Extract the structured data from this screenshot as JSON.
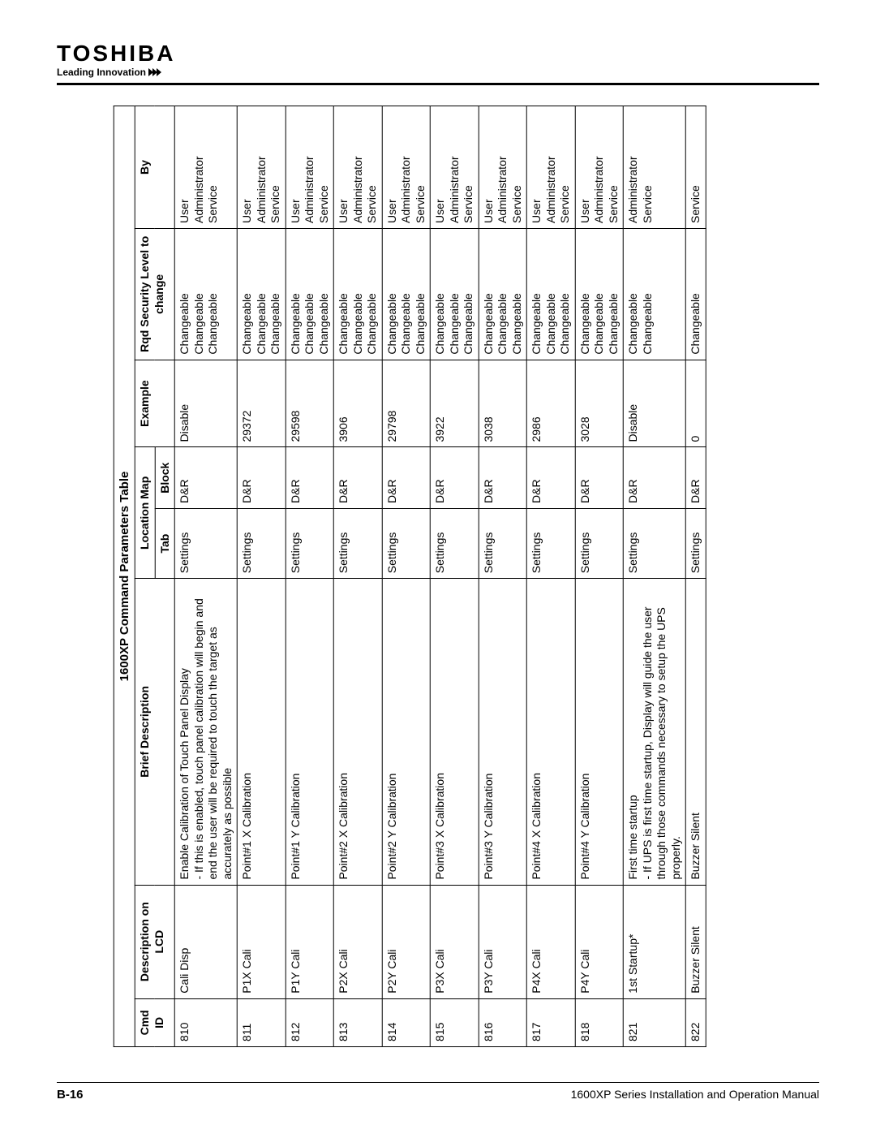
{
  "header": {
    "brand": "TOSHIBA",
    "tagline": "Leading Innovation"
  },
  "table": {
    "title": "1600XP Command Parameters Table",
    "columns": {
      "cmd": "Cmd ID",
      "desc": "Description on LCD",
      "brief": "Brief Description",
      "locmap": "Location Map",
      "tab": "Tab",
      "block": "Block",
      "example": "Example",
      "rqd": "Rqd Security Level to change",
      "by": "By"
    },
    "rows": [
      {
        "cmd": "810",
        "desc": "Cali Disp",
        "brief": "Enable Calibration of Touch Panel Display\n- If this is enabled, touch panel calibration will begin and end the user will be required to touch the target as accurately as possible",
        "tab": "Settings",
        "block": "D&R",
        "example": "Disable",
        "sec": "Changeable\nChangeable\nChangeable",
        "by": "User\nAdministrator\nService"
      },
      {
        "cmd": "811",
        "desc": "P1X Cali",
        "brief": "Point#1 X Calibration",
        "tab": "Settings",
        "block": "D&R",
        "example": "29372",
        "sec": "Changeable\nChangeable\nChangeable",
        "by": "User\nAdministrator\nService"
      },
      {
        "cmd": "812",
        "desc": "P1Y Cali",
        "brief": "Point#1 Y Calibration",
        "tab": "Settings",
        "block": "D&R",
        "example": "29598",
        "sec": "Changeable\nChangeable\nChangeable",
        "by": "User\nAdministrator\nService"
      },
      {
        "cmd": "813",
        "desc": "P2X Cali",
        "brief": "Point#2 X Calibration",
        "tab": "Settings",
        "block": "D&R",
        "example": "3906",
        "sec": "Changeable\nChangeable\nChangeable",
        "by": "User\nAdministrator\nService"
      },
      {
        "cmd": "814",
        "desc": "P2Y Cali",
        "brief": "Point#2 Y Calibration",
        "tab": "Settings",
        "block": "D&R",
        "example": "29798",
        "sec": "Changeable\nChangeable\nChangeable",
        "by": "User\nAdministrator\nService"
      },
      {
        "cmd": "815",
        "desc": "P3X Cali",
        "brief": "Point#3 X Calibration",
        "tab": "Settings",
        "block": "D&R",
        "example": "3922",
        "sec": "Changeable\nChangeable\nChangeable",
        "by": "User\nAdministrator\nService"
      },
      {
        "cmd": "816",
        "desc": "P3Y Cali",
        "brief": "Point#3 Y Calibration",
        "tab": "Settings",
        "block": "D&R",
        "example": "3038",
        "sec": "Changeable\nChangeable\nChangeable",
        "by": "User\nAdministrator\nService"
      },
      {
        "cmd": "817",
        "desc": "P4X Cali",
        "brief": "Point#4 X Calibration",
        "tab": "Settings",
        "block": "D&R",
        "example": "2986",
        "sec": "Changeable\nChangeable\nChangeable",
        "by": "User\nAdministrator\nService"
      },
      {
        "cmd": "818",
        "desc": "P4Y Cali",
        "brief": "Point#4 Y Calibration",
        "tab": "Settings",
        "block": "D&R",
        "example": "3028",
        "sec": "Changeable\nChangeable\nChangeable",
        "by": "User\nAdministrator\nService"
      },
      {
        "cmd": "821",
        "desc": "1st Startup*",
        "brief": "First time startup\n- If UPS is first time startup, Display will guide the user through those commands necessary to setup the UPS properly.",
        "tab": "Settings",
        "block": "D&R",
        "example": "Disable",
        "sec": "Changeable\nChangeable",
        "by": "Administrator\nService"
      },
      {
        "cmd": "822",
        "desc": "Buzzer Silent",
        "brief": "Buzzer Silent",
        "tab": "Settings",
        "block": "D&R",
        "example": "0",
        "sec": "Changeable",
        "by": "Service"
      }
    ]
  },
  "footer": {
    "page": "B-16",
    "manual": "1600XP Series Installation and Operation Manual"
  }
}
